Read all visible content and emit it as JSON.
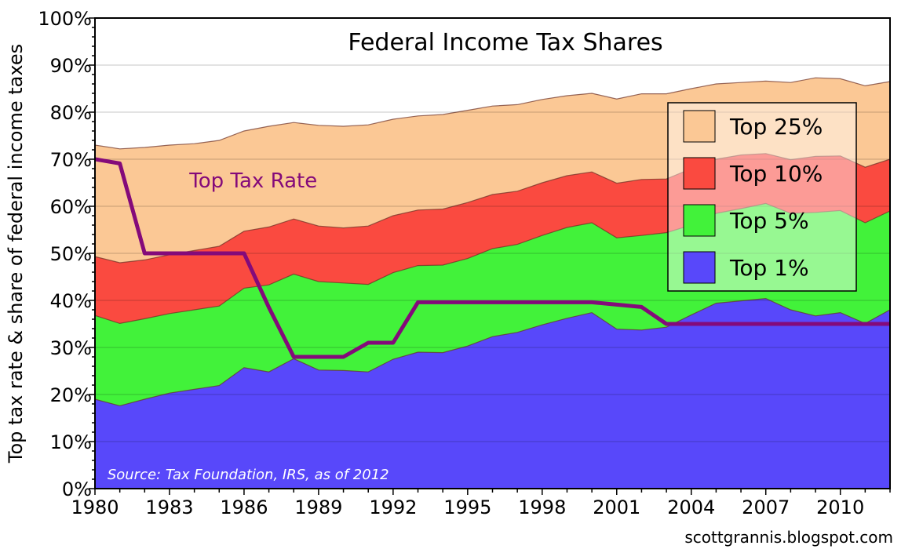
{
  "chart_data": {
    "type": "area",
    "title": "Federal Income Tax Shares",
    "ylabel": "Top tax rate & share of federal income taxes",
    "xlabel": "",
    "ylim": [
      0,
      100
    ],
    "xlim": [
      1980,
      2012
    ],
    "y_ticks": [
      0,
      10,
      20,
      30,
      40,
      50,
      60,
      70,
      80,
      90,
      100
    ],
    "y_tick_labels": [
      "0%",
      "10%",
      "20%",
      "30%",
      "40%",
      "50%",
      "60%",
      "70%",
      "80%",
      "90%",
      "100%"
    ],
    "x_ticks": [
      1980,
      1983,
      1986,
      1989,
      1992,
      1995,
      1998,
      2001,
      2004,
      2007,
      2010
    ],
    "x_tick_labels": [
      "1980",
      "1983",
      "1986",
      "1989",
      "1992",
      "1995",
      "1998",
      "2001",
      "2004",
      "2007",
      "2010"
    ],
    "x": [
      1980,
      1981,
      1982,
      1983,
      1984,
      1985,
      1986,
      1987,
      1988,
      1989,
      1990,
      1991,
      1992,
      1993,
      1994,
      1995,
      1996,
      1997,
      1998,
      1999,
      2000,
      2001,
      2002,
      2003,
      2004,
      2005,
      2006,
      2007,
      2008,
      2009,
      2010,
      2011,
      2012
    ],
    "series": [
      {
        "name": "Top 25%",
        "color": "#fbc895",
        "values": [
          73.0,
          72.2,
          72.5,
          73.0,
          73.3,
          74.0,
          76.0,
          77.0,
          77.8,
          77.2,
          77.0,
          77.3,
          78.5,
          79.2,
          79.5,
          80.4,
          81.3,
          81.6,
          82.7,
          83.5,
          84.0,
          82.8,
          83.9,
          83.9,
          85.0,
          86.0,
          86.3,
          86.6,
          86.3,
          87.3,
          87.1,
          85.6,
          86.5
        ]
      },
      {
        "name": "Top 10%",
        "color": "#fa4a40",
        "values": [
          49.3,
          48.0,
          48.6,
          49.7,
          50.6,
          51.5,
          54.7,
          55.6,
          57.3,
          55.8,
          55.4,
          55.8,
          58.0,
          59.2,
          59.4,
          60.8,
          62.5,
          63.2,
          65.0,
          66.5,
          67.3,
          64.9,
          65.7,
          65.8,
          68.0,
          70.0,
          70.9,
          71.2,
          69.9,
          70.6,
          70.7,
          68.3,
          70.0
        ]
      },
      {
        "name": "Top 5%",
        "color": "#42f23a",
        "values": [
          36.8,
          35.1,
          36.1,
          37.2,
          38.0,
          38.8,
          42.6,
          43.3,
          45.6,
          44.0,
          43.7,
          43.4,
          45.9,
          47.4,
          47.5,
          48.9,
          51.0,
          51.9,
          53.8,
          55.5,
          56.5,
          53.3,
          53.8,
          54.4,
          56.0,
          58.5,
          59.5,
          60.6,
          58.5,
          58.7,
          59.1,
          56.5,
          59.0
        ]
      },
      {
        "name": "Top 1%",
        "color": "#5848fa",
        "values": [
          19.0,
          17.6,
          19.0,
          20.3,
          21.1,
          21.9,
          25.7,
          24.8,
          27.6,
          25.2,
          25.1,
          24.8,
          27.5,
          29.0,
          28.9,
          30.3,
          32.3,
          33.2,
          34.8,
          36.2,
          37.4,
          33.9,
          33.7,
          34.3,
          36.9,
          39.4,
          39.9,
          40.4,
          38.0,
          36.7,
          37.4,
          35.1,
          38.0
        ]
      }
    ],
    "line_series": {
      "name": "Top Tax Rate",
      "color": "#840a7a",
      "points": [
        [
          1980,
          70
        ],
        [
          1981,
          69.1
        ],
        [
          1982,
          50
        ],
        [
          1986,
          50
        ],
        [
          1987,
          38.5
        ],
        [
          1988,
          28
        ],
        [
          1990,
          28
        ],
        [
          1991,
          31
        ],
        [
          1992,
          31
        ],
        [
          1993,
          39.6
        ],
        [
          2000,
          39.6
        ],
        [
          2001,
          39.1
        ],
        [
          2002,
          38.6
        ],
        [
          2003,
          35
        ],
        [
          2012,
          35
        ]
      ]
    },
    "annotations": [
      {
        "text": "Top Tax Rate",
        "x": 1983.8,
        "y": 64,
        "color": "#840a7a"
      },
      {
        "text": "Source: Tax Foundation, IRS, as of 2012",
        "x": 1980.5,
        "y": 2,
        "color": "#ffffff",
        "italic": true
      }
    ],
    "legend": {
      "position": "right",
      "entries": [
        "Top 25%",
        "Top 10%",
        "Top 5%",
        "Top 1%"
      ]
    },
    "grid": true,
    "credit": "scottgrannis.blogspot.com"
  }
}
